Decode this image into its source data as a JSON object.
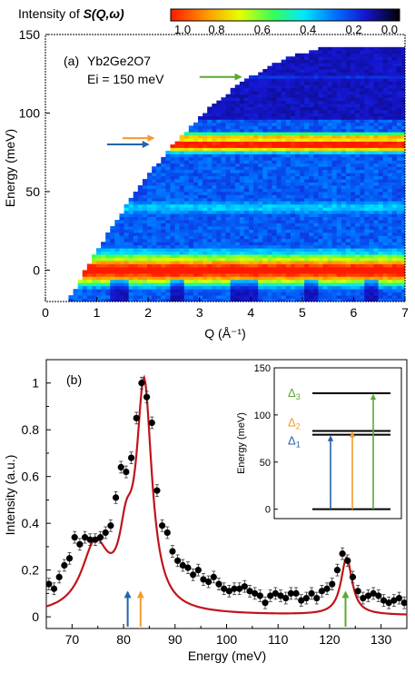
{
  "chart_data": [
    {
      "panel_label": "(a)",
      "type": "heatmap",
      "colorbar": {
        "title_prefix": "Intensity of ",
        "title_math": "S(Q,ω)",
        "ticks": [
          "1.0",
          "0.8",
          "0.6",
          "0.4",
          "0.2",
          "0.0"
        ],
        "colormap": "jet reversed (red = high, black = low)"
      },
      "annotation_material": "Yb2Ge2O7",
      "annotation_ei": "Ei = 150 meV",
      "xlabel": "Q (Å⁻¹)",
      "ylabel": "Energy (meV)",
      "xlim": [
        0,
        7
      ],
      "ylim": [
        -20,
        150
      ],
      "xticks": [
        0,
        1,
        2,
        3,
        4,
        5,
        6,
        7
      ],
      "yticks": [
        0,
        50,
        100,
        150
      ],
      "kinematic_limit": {
        "q_min": 0.45,
        "e_at_q_min": -20,
        "q_flat": 6.0,
        "e_max": 142
      },
      "bands": [
        {
          "energy": 0,
          "width": 10,
          "intensity": 1.0,
          "label": "elastic line"
        },
        {
          "energy": 9,
          "width": 3,
          "intensity": 0.55
        },
        {
          "energy": 12,
          "width": 4,
          "intensity": 0.35
        },
        {
          "energy": 40,
          "width": 6,
          "intensity": 0.35
        },
        {
          "energy": 80,
          "width": 5,
          "intensity": 1.0
        },
        {
          "energy": 85,
          "width": 3,
          "intensity": 0.75
        },
        {
          "energy": 123,
          "width": 3,
          "intensity": 0.3
        }
      ],
      "arrows": [
        {
          "color": "#2563a8",
          "energy": 80,
          "q_start": 1.2,
          "q_end": 2.0
        },
        {
          "color": "#f39c2b",
          "energy": 84,
          "q_start": 1.5,
          "q_end": 2.1
        },
        {
          "color": "#5aa832",
          "energy": 123,
          "q_start": 3.0,
          "q_end": 3.8
        }
      ]
    },
    {
      "panel_label": "(b)",
      "type": "scatter",
      "xlabel": "Energy (meV)",
      "ylabel": "Intensity (a.u.)",
      "xlim": [
        65,
        135
      ],
      "ylim": [
        -0.05,
        1.1
      ],
      "xticks": [
        70,
        80,
        90,
        100,
        110,
        120,
        130
      ],
      "yticks": [
        0,
        0.2,
        0.4,
        0.6,
        0.8,
        1
      ],
      "ytick_labels": [
        "0",
        "0.2",
        "0.4",
        "0.6",
        "0.8",
        "1"
      ],
      "data_points": {
        "x": [
          65.5,
          66.5,
          67.5,
          68.5,
          69.5,
          70.5,
          71.5,
          72.5,
          73.5,
          74.5,
          75.5,
          76.5,
          77.5,
          78.5,
          79.5,
          80.5,
          81.5,
          82.5,
          83.5,
          84.5,
          85.5,
          86.5,
          87.5,
          88.5,
          89.5,
          90.5,
          91.5,
          92.5,
          93.5,
          94.5,
          95.5,
          96.5,
          97.5,
          98.5,
          99.5,
          100.5,
          101.5,
          102.5,
          103.5,
          104.5,
          105.5,
          106.5,
          107.5,
          108.5,
          109.5,
          110.5,
          111.5,
          112.5,
          113.5,
          114.5,
          115.5,
          116.5,
          117.5,
          118.5,
          119.5,
          120.5,
          121.5,
          122.5,
          123.5,
          124.5,
          125.5,
          126.5,
          127.5,
          128.5,
          129.5,
          130.5,
          131.5,
          132.5,
          133.5,
          134.5
        ],
        "y": [
          0.14,
          0.12,
          0.17,
          0.22,
          0.25,
          0.34,
          0.31,
          0.34,
          0.33,
          0.33,
          0.34,
          0.36,
          0.39,
          0.51,
          0.64,
          0.62,
          0.68,
          0.85,
          1.0,
          0.94,
          0.83,
          0.54,
          0.39,
          0.36,
          0.28,
          0.24,
          0.22,
          0.21,
          0.18,
          0.2,
          0.16,
          0.15,
          0.17,
          0.14,
          0.12,
          0.11,
          0.12,
          0.12,
          0.13,
          0.11,
          0.1,
          0.09,
          0.06,
          0.09,
          0.1,
          0.09,
          0.08,
          0.1,
          0.1,
          0.07,
          0.08,
          0.1,
          0.08,
          0.11,
          0.12,
          0.14,
          0.2,
          0.27,
          0.24,
          0.17,
          0.11,
          0.08,
          0.09,
          0.1,
          0.09,
          0.07,
          0.06,
          0.07,
          0.08,
          0.06
        ],
        "yerr": 0.025
      },
      "fit_curve": {
        "color": "#c0141a",
        "components": [
          {
            "center": 74.5,
            "height": 0.28,
            "width": 3.2
          },
          {
            "center": 80.5,
            "height": 0.23,
            "width": 1.6
          },
          {
            "center": 84.0,
            "height": 0.95,
            "width": 1.8
          },
          {
            "center": 123.3,
            "height": 0.245,
            "width": 1.3
          }
        ],
        "background": 0.005
      },
      "arrows": [
        {
          "energy": 80.8,
          "color": "#2563a8"
        },
        {
          "energy": 83.3,
          "color": "#f39c2b"
        },
        {
          "energy": 123.1,
          "color": "#5aa832"
        }
      ],
      "inset": {
        "type": "level_scheme",
        "ylabel": "Energy (meV)",
        "ylim": [
          -10,
          150
        ],
        "yticks": [
          0,
          50,
          100,
          150
        ],
        "levels": [
          {
            "energy": 0,
            "label": ""
          },
          {
            "energy": 79,
            "label": "Δ1",
            "label_base": "Δ",
            "label_sub": "1",
            "color": "#2563a8"
          },
          {
            "energy": 83,
            "label": "Δ2",
            "label_base": "Δ",
            "label_sub": "2",
            "color": "#f39c2b"
          },
          {
            "energy": 123,
            "label": "Δ3",
            "label_base": "Δ",
            "label_sub": "3",
            "color": "#5aa832"
          }
        ]
      }
    }
  ]
}
